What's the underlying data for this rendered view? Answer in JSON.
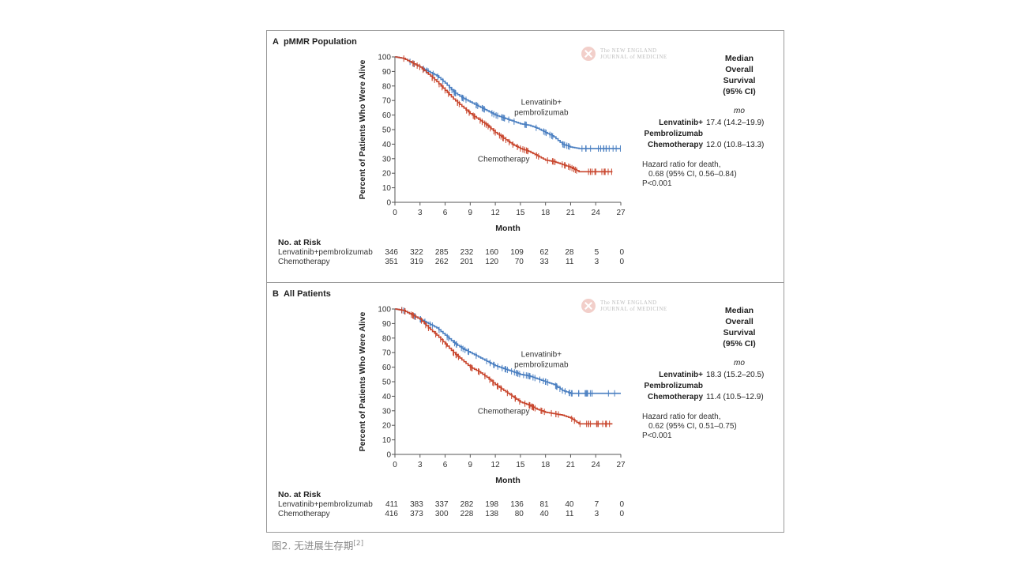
{
  "caption": {
    "text": "图2. 无进展生存期",
    "ref": "[2]"
  },
  "publisher": {
    "line1": "The NEW ENGLAND",
    "line2": "JOURNAL of MEDICINE"
  },
  "colors": {
    "treatment": "#4a7fc1",
    "chemo": "#c8452c"
  },
  "chart_data": [
    {
      "type": "line",
      "panel": "A",
      "title": "pMMR Population",
      "xlabel": "Month",
      "ylabel": "Percent of Patients Who Were Alive",
      "xlim": [
        0,
        27
      ],
      "ylim": [
        0,
        100
      ],
      "xticks": [
        0,
        3,
        6,
        9,
        12,
        15,
        18,
        21,
        24,
        27
      ],
      "yticks": [
        0,
        10,
        20,
        30,
        40,
        50,
        60,
        70,
        80,
        90,
        100
      ],
      "grid": false,
      "series": [
        {
          "name": "Lenvatinib+pembrolizumab",
          "label_lines": [
            "Lenvatinib+",
            "pembrolizumab"
          ],
          "color_key": "treatment",
          "x": [
            0,
            1,
            2,
            3,
            4,
            5,
            6,
            7,
            8,
            9,
            10,
            11,
            12,
            13,
            14,
            15,
            16,
            17,
            18,
            19,
            20,
            21,
            22,
            23,
            24,
            25,
            26,
            27
          ],
          "y": [
            100,
            99,
            96,
            93,
            90,
            87,
            82,
            76,
            72,
            69,
            66,
            63,
            60,
            58,
            56,
            54,
            53,
            51,
            48,
            45,
            40,
            38,
            37,
            37,
            37,
            37,
            37,
            37
          ]
        },
        {
          "name": "Chemotherapy",
          "label_lines": [
            "Chemotherapy"
          ],
          "color_key": "chemo",
          "x": [
            0,
            1,
            2,
            3,
            4,
            5,
            6,
            7,
            8,
            9,
            10,
            11,
            12,
            13,
            14,
            15,
            16,
            17,
            18,
            19,
            20,
            21,
            22,
            23,
            24,
            25,
            26
          ],
          "y": [
            100,
            99,
            96,
            93,
            88,
            83,
            77,
            71,
            66,
            61,
            57,
            53,
            48,
            44,
            40,
            37,
            35,
            32,
            29,
            28,
            26,
            24,
            21,
            21,
            21,
            21,
            21
          ]
        }
      ],
      "median_os": {
        "header": [
          "Median",
          "Overall",
          "Survival",
          "(95% CI)"
        ],
        "unit": "mo",
        "rows": [
          {
            "arm_lines": [
              "Lenvatinib+",
              "Pembrolizumab"
            ],
            "value": "17.4 (14.2–19.9)"
          },
          {
            "arm_lines": [
              "Chemotherapy"
            ],
            "value": "12.0 (10.8–13.3)"
          }
        ]
      },
      "hazard": {
        "line1": "Hazard ratio for death,",
        "line2": "0.68 (95% CI, 0.56–0.84)",
        "line3": "P<0.001"
      },
      "risk_table": {
        "title": "No. at Risk",
        "rows": [
          {
            "arm": "Lenvatinib+pembrolizumab",
            "values": [
              346,
              322,
              285,
              232,
              160,
              109,
              62,
              28,
              5,
              0
            ]
          },
          {
            "arm": "Chemotherapy",
            "values": [
              351,
              319,
              262,
              201,
              120,
              70,
              33,
              11,
              3,
              0
            ]
          }
        ]
      }
    },
    {
      "type": "line",
      "panel": "B",
      "title": "All Patients",
      "xlabel": "Month",
      "ylabel": "Percent of Patients Who Were Alive",
      "xlim": [
        0,
        27
      ],
      "ylim": [
        0,
        100
      ],
      "xticks": [
        0,
        3,
        6,
        9,
        12,
        15,
        18,
        21,
        24,
        27
      ],
      "yticks": [
        0,
        10,
        20,
        30,
        40,
        50,
        60,
        70,
        80,
        90,
        100
      ],
      "grid": false,
      "series": [
        {
          "name": "Lenvatinib+pembrolizumab",
          "label_lines": [
            "Lenvatinib+",
            "pembrolizumab"
          ],
          "color_key": "treatment",
          "x": [
            0,
            1,
            2,
            3,
            4,
            5,
            6,
            7,
            8,
            9,
            10,
            11,
            12,
            13,
            14,
            15,
            16,
            17,
            18,
            19,
            20,
            21,
            22,
            23,
            24,
            25,
            26,
            27
          ],
          "y": [
            100,
            99,
            96,
            93,
            90,
            87,
            82,
            77,
            73,
            70,
            67,
            64,
            61,
            59,
            57,
            55,
            54,
            52,
            50,
            48,
            44,
            42,
            42,
            42,
            42,
            42,
            42,
            42
          ]
        },
        {
          "name": "Chemotherapy",
          "label_lines": [
            "Chemotherapy"
          ],
          "color_key": "chemo",
          "x": [
            0,
            1,
            2,
            3,
            4,
            5,
            6,
            7,
            8,
            9,
            10,
            11,
            12,
            13,
            14,
            15,
            16,
            17,
            18,
            19,
            20,
            21,
            22,
            23,
            24,
            25,
            26
          ],
          "y": [
            100,
            99,
            96,
            93,
            87,
            82,
            76,
            70,
            65,
            60,
            57,
            53,
            48,
            44,
            40,
            36,
            34,
            31,
            29,
            28,
            27,
            25,
            21,
            21,
            21,
            21,
            21
          ]
        }
      ],
      "median_os": {
        "header": [
          "Median",
          "Overall",
          "Survival",
          "(95% CI)"
        ],
        "unit": "mo",
        "rows": [
          {
            "arm_lines": [
              "Lenvatinib+",
              "Pembrolizumab"
            ],
            "value": "18.3 (15.2–20.5)"
          },
          {
            "arm_lines": [
              "Chemotherapy"
            ],
            "value": "11.4 (10.5–12.9)"
          }
        ]
      },
      "hazard": {
        "line1": "Hazard ratio for death,",
        "line2": "0.62 (95% CI, 0.51–0.75)",
        "line3": "P<0.001"
      },
      "risk_table": {
        "title": "No. at Risk",
        "rows": [
          {
            "arm": "Lenvatinib+pembrolizumab",
            "values": [
              411,
              383,
              337,
              282,
              198,
              136,
              81,
              40,
              7,
              0
            ]
          },
          {
            "arm": "Chemotherapy",
            "values": [
              416,
              373,
              300,
              228,
              138,
              80,
              40,
              11,
              3,
              0
            ]
          }
        ]
      }
    }
  ]
}
